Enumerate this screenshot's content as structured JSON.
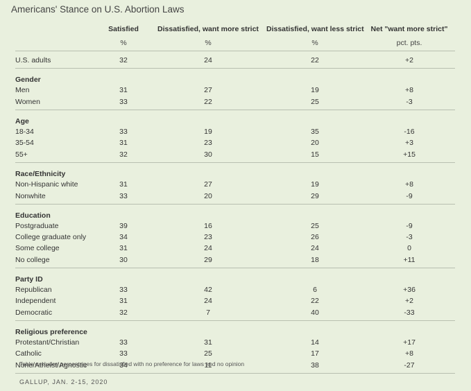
{
  "title": "Americans' Stance on U.S. Abortion Laws",
  "columns": [
    "Satisfied",
    "Dissatisfied, want more strict",
    "Dissatisfied, want less strict",
    "Net \"want more strict\""
  ],
  "units": [
    "%",
    "%",
    "%",
    "pct. pts."
  ],
  "overall": {
    "label": "U.S. adults",
    "values": [
      "32",
      "24",
      "22",
      "+2"
    ]
  },
  "groups": [
    {
      "name": "Gender",
      "rows": [
        {
          "label": "Men",
          "values": [
            "31",
            "27",
            "19",
            "+8"
          ]
        },
        {
          "label": "Women",
          "values": [
            "33",
            "22",
            "25",
            "-3"
          ]
        }
      ]
    },
    {
      "name": "Age",
      "rows": [
        {
          "label": "18-34",
          "values": [
            "33",
            "19",
            "35",
            "-16"
          ]
        },
        {
          "label": "35-54",
          "values": [
            "31",
            "23",
            "20",
            "+3"
          ]
        },
        {
          "label": "55+",
          "values": [
            "32",
            "30",
            "15",
            "+15"
          ]
        }
      ]
    },
    {
      "name": "Race/Ethnicity",
      "rows": [
        {
          "label": "Non-Hispanic white",
          "values": [
            "31",
            "27",
            "19",
            "+8"
          ]
        },
        {
          "label": "Nonwhite",
          "values": [
            "33",
            "20",
            "29",
            "-9"
          ]
        }
      ]
    },
    {
      "name": "Education",
      "rows": [
        {
          "label": "Postgraduate",
          "values": [
            "39",
            "16",
            "25",
            "-9"
          ]
        },
        {
          "label": "College graduate only",
          "values": [
            "34",
            "23",
            "26",
            "-3"
          ]
        },
        {
          "label": "Some college",
          "values": [
            "31",
            "24",
            "24",
            "0"
          ]
        },
        {
          "label": "No college",
          "values": [
            "30",
            "29",
            "18",
            "+11"
          ]
        }
      ]
    },
    {
      "name": "Party ID",
      "rows": [
        {
          "label": "Republican",
          "values": [
            "33",
            "42",
            "6",
            "+36"
          ]
        },
        {
          "label": "Independent",
          "values": [
            "31",
            "24",
            "22",
            "+2"
          ]
        },
        {
          "label": "Democratic",
          "values": [
            "32",
            "7",
            "40",
            "-33"
          ]
        }
      ]
    },
    {
      "name": "Religious preference",
      "rows": [
        {
          "label": "Protestant/Christian",
          "values": [
            "33",
            "31",
            "14",
            "+17"
          ]
        },
        {
          "label": "Catholic",
          "values": [
            "33",
            "25",
            "17",
            "+8"
          ]
        },
        {
          "label": "None/Atheist/Agnostic",
          "values": [
            "34",
            "11",
            "38",
            "-27"
          ]
        }
      ]
    }
  ],
  "footnote": "Table excludes percentages for dissatisfied with no preference for laws and no opinion",
  "source": "GALLUP, JAN. 2-15, 2020"
}
